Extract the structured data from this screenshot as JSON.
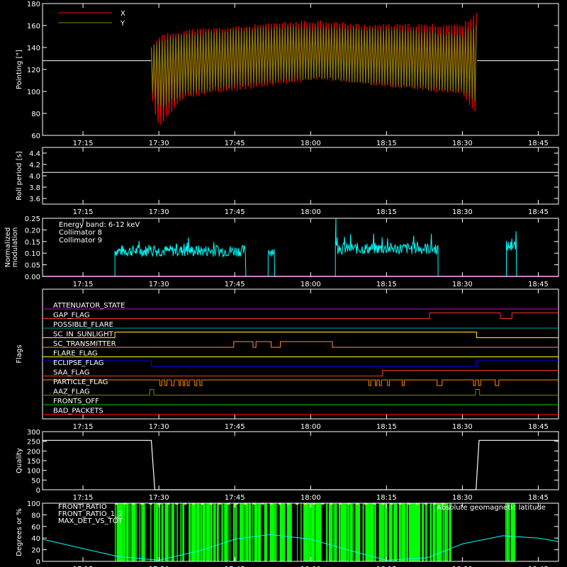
{
  "colors": {
    "background": "#000000",
    "axes": "#ffffff",
    "x_series": "#ff0000",
    "y_series": "#808000",
    "collimator8": "#00ffff",
    "collimator9": "#ff00ff",
    "quality": "#ffffff",
    "front_ratio": "#ffff00",
    "front_ratio_1_2": "#00ff00",
    "max_det": "#ff8c3c",
    "geomag": "#00ffff"
  },
  "x_axis": {
    "ticks": [
      "17:15",
      "17:30",
      "17:45",
      "18:00",
      "18:15",
      "18:30",
      "18:45"
    ],
    "tick_minutes": [
      1035,
      1050,
      1065,
      1080,
      1095,
      1110,
      1125
    ],
    "range_minutes": [
      1027,
      1129
    ]
  },
  "panels": {
    "pointing": {
      "ylabel": "Pointing [\"]",
      "ylim": [
        60,
        180
      ],
      "yticks": [
        "60",
        "80",
        "100",
        "120",
        "140",
        "160",
        "180"
      ],
      "legend": [
        {
          "label": "X",
          "color": "#ff0000"
        },
        {
          "label": "Y",
          "color": "#808000"
        }
      ],
      "center_line": 128
    },
    "roll": {
      "ylabel": "Roll period [s]",
      "ylim": [
        3.5,
        4.5
      ],
      "yticks": [
        "3.6",
        "3.8",
        "4.0",
        "4.2",
        "4.4"
      ],
      "value": 4.06
    },
    "modulation": {
      "ylabel_1": "Normalized",
      "ylabel_2": "modulation",
      "ylim": [
        0,
        0.25
      ],
      "yticks": [
        "0.00",
        "0.05",
        "0.10",
        "0.15",
        "0.20",
        "0.25"
      ],
      "legend": [
        {
          "label": "Energy band: 6-12 keV",
          "color": "#ffffff"
        },
        {
          "label": "Collimator 8",
          "color": "#00ffff"
        },
        {
          "label": "Collimator 9",
          "color": "#ff00ff"
        }
      ]
    },
    "flags": {
      "ylabel": "Flags",
      "rows": [
        {
          "label": "ATTENUATOR_STATE",
          "color": "#c800c8",
          "label_color": "#ff00ff"
        },
        {
          "label": "GAP_FLAG",
          "color": "#ff3030",
          "label_color": "#ff0000"
        },
        {
          "label": "POSSIBLE_FLARE",
          "color": "#00a0a0",
          "label_color": "#00c8c8"
        },
        {
          "label": "SC_IN_SUNLIGHT",
          "color": "#ffff00",
          "label_color": "#ffff00"
        },
        {
          "label": "SC_TRANSMITTER",
          "color": "#ff8c3c",
          "label_color": "#ff8c3c"
        },
        {
          "label": "FLARE_FLAG",
          "color": "#ffff00",
          "label_color": "#ffff00"
        },
        {
          "label": "ECLIPSE_FLAG",
          "color": "#0000ff",
          "label_color": "#3c3cff"
        },
        {
          "label": "SAA_FLAG",
          "color": "#ff3030",
          "label_color": "#ff3030"
        },
        {
          "label": "PARTICLE_FLAG",
          "color": "#ff8c00",
          "label_color": "#ff8c00"
        },
        {
          "label": "AAZ_FLAG",
          "color": "#808000",
          "label_color": "#808000"
        },
        {
          "label": "FRONTS_OFF",
          "color": "#00c800",
          "label_color": "#00ff00"
        },
        {
          "label": "BAD_PACKETS",
          "color": "#ff0000",
          "label_color": "#ff0000"
        }
      ]
    },
    "quality": {
      "ylabel": "Quality",
      "ylim": [
        0,
        300
      ],
      "yticks": [
        "0",
        "50",
        "100",
        "150",
        "200",
        "250",
        "300"
      ]
    },
    "bottom": {
      "ylabel": "Degrees or %",
      "ylim": [
        0,
        100
      ],
      "yticks": [
        "0",
        "20",
        "40",
        "60",
        "80",
        "100"
      ],
      "legend": [
        {
          "label": "FRONT_RATIO",
          "color": "#ffff00"
        },
        {
          "label": "FRONT_RATIO_1_2",
          "color": "#00ff00"
        },
        {
          "label": "MAX_DET_VS_TOT",
          "color": "#ff8c3c"
        }
      ],
      "right_label": "Absolute geomagnetic latitude"
    }
  },
  "chart_data": [
    {
      "type": "line",
      "title": "",
      "ylabel": "Pointing [\"]",
      "ylim": [
        60,
        180
      ],
      "x_units": "minutes since 00:00",
      "series": [
        {
          "name": "X",
          "envelope_x": [
            1048.5,
            1050,
            1055,
            1065,
            1075,
            1082,
            1090,
            1100,
            1110,
            1112.8
          ],
          "upper": [
            140,
            150,
            155,
            158,
            162,
            164,
            160,
            160,
            160,
            172
          ],
          "lower": [
            95,
            68,
            95,
            102,
            108,
            112,
            108,
            103,
            98,
            80
          ]
        },
        {
          "name": "Y",
          "envelope_x": [
            1048.5,
            1050,
            1055,
            1065,
            1075,
            1082,
            1090,
            1100,
            1110,
            1112.8
          ],
          "upper": [
            140,
            146,
            152,
            156,
            158,
            158,
            157,
            155,
            152,
            160
          ],
          "lower": [
            100,
            85,
            98,
            105,
            110,
            112,
            108,
            104,
            100,
            90
          ]
        }
      ]
    },
    {
      "type": "line",
      "ylabel": "Roll period [s]",
      "ylim": [
        3.5,
        4.5
      ],
      "series": [
        {
          "name": "",
          "x": [
            1027,
            1129
          ],
          "y": [
            4.06,
            4.06
          ]
        }
      ]
    },
    {
      "type": "line",
      "ylabel": "Normalized modulation",
      "ylim": [
        0,
        0.25
      ],
      "series": [
        {
          "name": "Collimator 8",
          "segments": [
            {
              "x0": 1041.3,
              "x1": 1067.2,
              "level": 0.11
            },
            {
              "x0": 1071.6,
              "x1": 1072.9,
              "level": 0.11
            },
            {
              "x0": 1084.9,
              "x1": 1105.2,
              "level": 0.12
            },
            {
              "x0": 1118.7,
              "x1": 1120.7,
              "level": 0.13
            }
          ]
        },
        {
          "name": "Collimator 9",
          "x": [
            1027,
            1129
          ],
          "y": [
            0,
            0
          ]
        }
      ]
    },
    {
      "type": "line",
      "ylabel": "Quality",
      "ylim": [
        0,
        300
      ],
      "series": [
        {
          "name": "",
          "x": [
            1027,
            1048.5,
            1049.2,
            1112.7,
            1113.3,
            1129
          ],
          "y": [
            255,
            255,
            0,
            0,
            255,
            255
          ]
        }
      ]
    },
    {
      "type": "line",
      "ylabel": "Degrees or %",
      "ylim": [
        0,
        100
      ],
      "series": [
        {
          "name": "Absolute geomagnetic latitude",
          "x": [
            1027,
            1035,
            1042,
            1050,
            1058,
            1065,
            1072,
            1080,
            1088,
            1095,
            1103,
            1110,
            1118,
            1125,
            1129
          ],
          "y": [
            38,
            22,
            8,
            2,
            18,
            38,
            46,
            38,
            18,
            2,
            6,
            30,
            44,
            40,
            34
          ]
        },
        {
          "name": "FRONT_RATIO_1_2",
          "x_ranges": [
            [
              1041.3,
              1107.5
            ],
            [
              1118.5,
              1120.8
            ]
          ],
          "y": [
            0,
            100
          ]
        }
      ]
    }
  ]
}
